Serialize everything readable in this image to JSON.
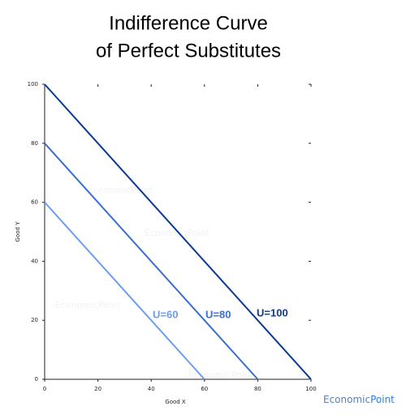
{
  "chart_data": {
    "type": "line",
    "title": [
      "Indifference Curve",
      "of Perfect Substitutes"
    ],
    "xlabel": "Good X",
    "ylabel": "Good Y",
    "xlim": [
      0,
      100
    ],
    "ylim": [
      0,
      100
    ],
    "xticks": [
      0,
      20,
      40,
      60,
      80,
      100
    ],
    "yticks": [
      0,
      20,
      40,
      60,
      80,
      100
    ],
    "series": [
      {
        "name": "U=60",
        "color": "#6b9ef0",
        "x": [
          0,
          60
        ],
        "values": [
          60,
          0
        ]
      },
      {
        "name": "U=80",
        "color": "#3a6fd0",
        "x": [
          0,
          80
        ],
        "values": [
          80,
          0
        ]
      },
      {
        "name": "U=100",
        "color": "#0b3a93",
        "x": [
          0,
          100
        ],
        "values": [
          100,
          0
        ]
      }
    ],
    "watermark": "EconomicPoint",
    "logo": [
      "Economic",
      "Point"
    ]
  }
}
